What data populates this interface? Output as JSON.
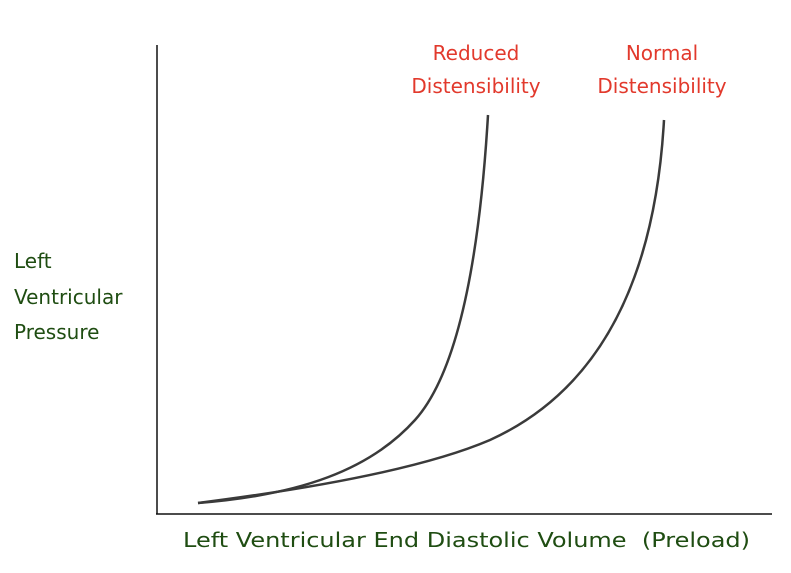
{
  "curves": [
    {
      "label": [
        "Reduced",
        "Distensibility"
      ]
    },
    {
      "label": [
        "Normal",
        "Distensibility"
      ]
    }
  ],
  "y_axis": {
    "label": [
      "Left",
      "Ventricular",
      "Pressure"
    ]
  },
  "x_axis": {
    "label": "Left Ventricular End Diastolic Volume  (Preload)"
  }
}
